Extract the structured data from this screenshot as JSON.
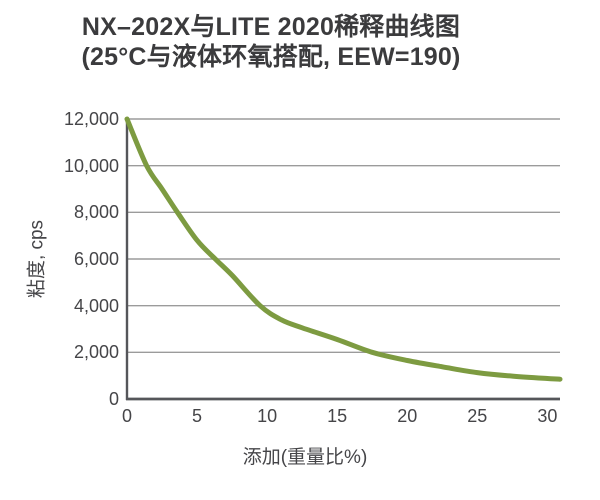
{
  "title": {
    "line1": "NX–202X与LITE 2020稀释曲线图",
    "line2": "(25°C与液体环氧搭配, EEW=190)"
  },
  "chart_data": {
    "type": "line",
    "title": "NX–202X与LITE 2020稀释曲线图",
    "subtitle": "(25°C与液体环氧搭配, EEW=190)",
    "xlabel": "添加(重量比%)",
    "ylabel": "粘度, cps",
    "xlim": [
      0,
      30.9
    ],
    "ylim": [
      0,
      12000
    ],
    "x_ticks": [
      0,
      5,
      10,
      15,
      20,
      25,
      30
    ],
    "x_tick_labels": [
      "0",
      "5",
      "10",
      "15",
      "20",
      "25",
      "30"
    ],
    "y_ticks": [
      0,
      2000,
      4000,
      6000,
      8000,
      10000,
      12000
    ],
    "y_tick_labels": [
      "0",
      "2,000",
      "4,000",
      "6,000",
      "8,000",
      "10,000",
      "12,000"
    ],
    "grid": "horizontal-only",
    "legend": "none",
    "series": [
      {
        "points": [
          [
            0,
            12000
          ],
          [
            1.4,
            10000
          ],
          [
            2.5,
            9000
          ],
          [
            3.6,
            8000
          ],
          [
            5,
            6800
          ],
          [
            6.3,
            6000
          ],
          [
            7.5,
            5300
          ],
          [
            9.5,
            4000
          ],
          [
            11,
            3400
          ],
          [
            12.5,
            3050
          ],
          [
            15,
            2550
          ],
          [
            17.5,
            2000
          ],
          [
            20,
            1650
          ],
          [
            22.5,
            1380
          ],
          [
            25,
            1130
          ],
          [
            27.5,
            980
          ],
          [
            30,
            880
          ],
          [
            30.9,
            850
          ]
        ]
      }
    ]
  },
  "colors": {
    "curve": "#7d9b41",
    "grid": "#9b9b9b",
    "axis": "#55565a",
    "title_text": "#3b3b3d",
    "label_text": "#454548"
  }
}
